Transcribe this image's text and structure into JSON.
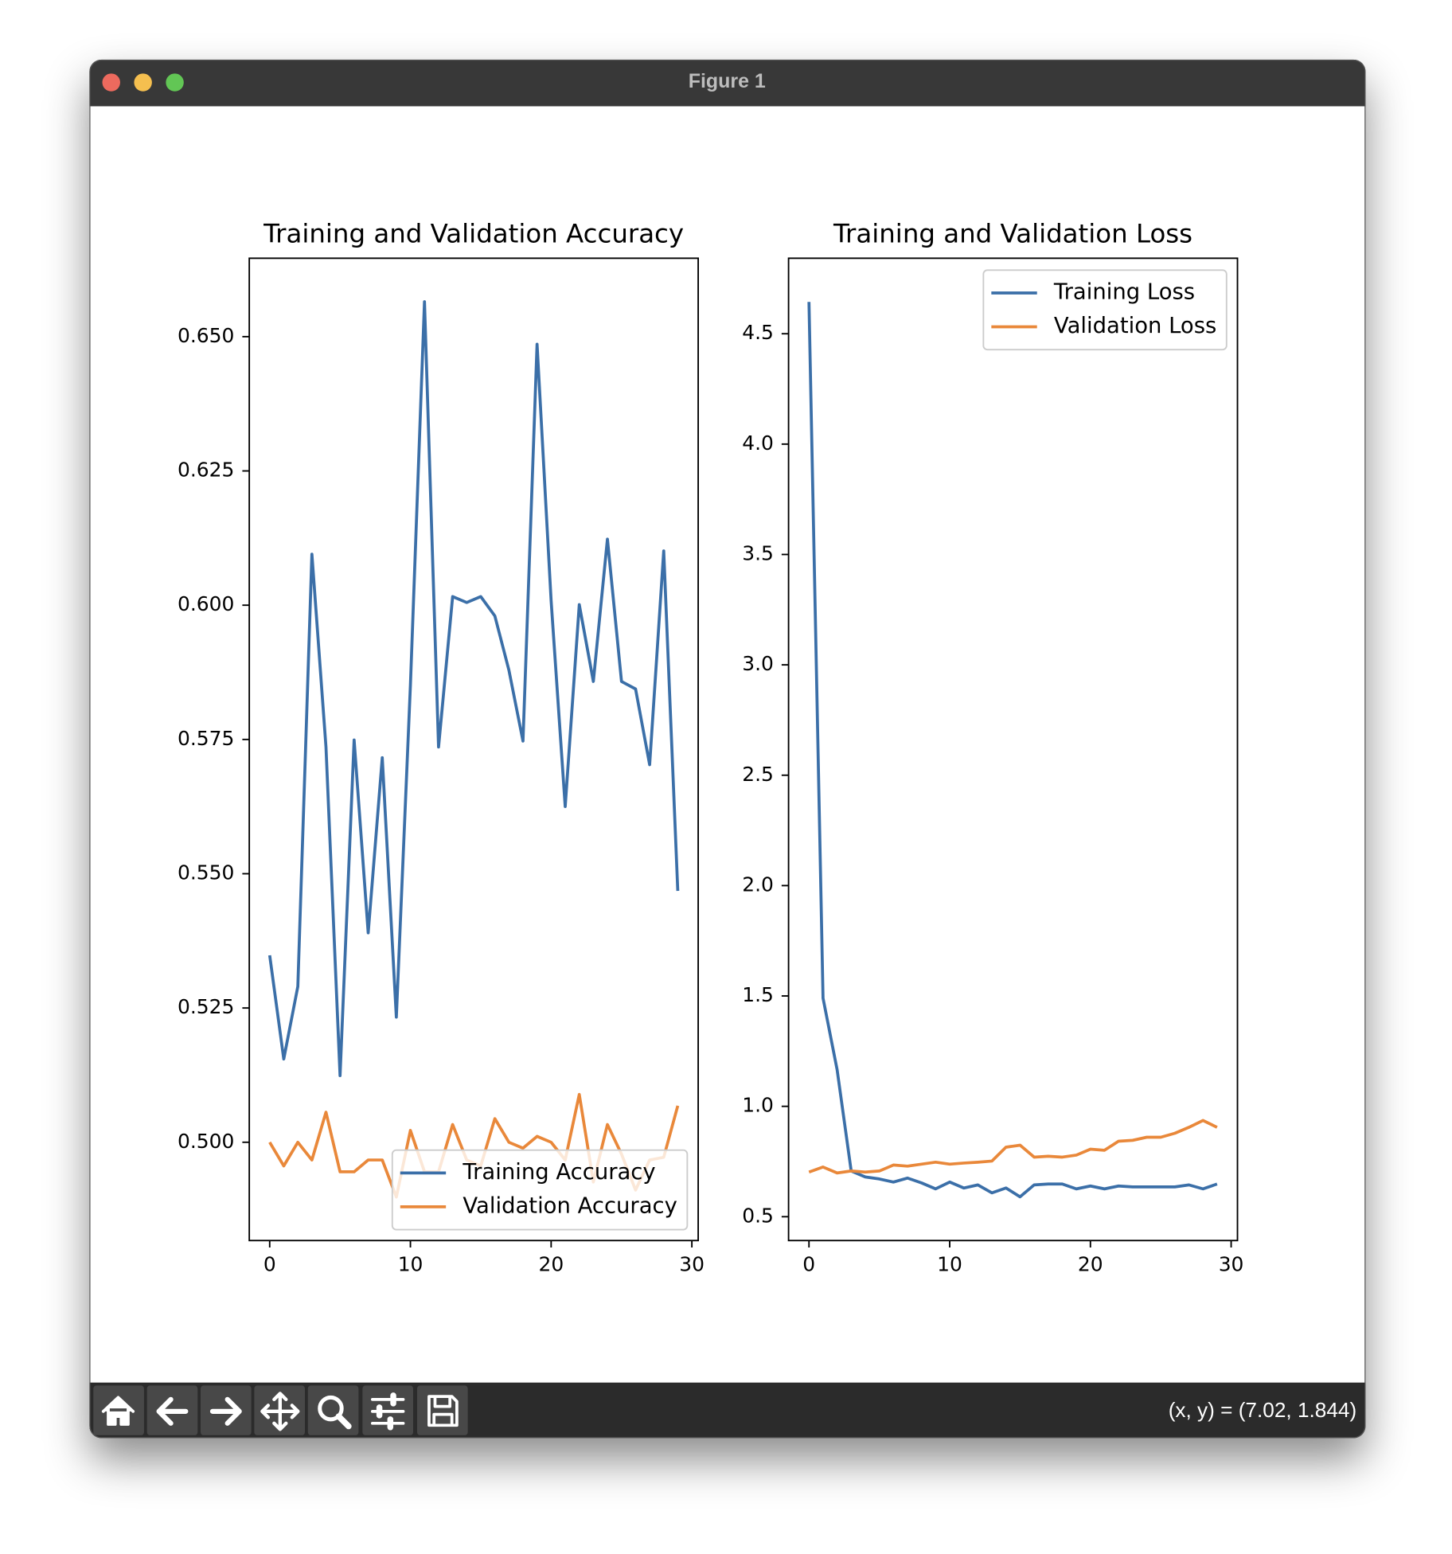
{
  "window": {
    "title": "Figure 1",
    "status": "(x, y) = (7.02, 1.844)"
  },
  "chart_data": [
    {
      "type": "line",
      "title": "Training and Validation Accuracy",
      "x": [
        0,
        1,
        2,
        3,
        4,
        5,
        6,
        7,
        8,
        9,
        10,
        11,
        12,
        13,
        14,
        15,
        16,
        17,
        18,
        19,
        20,
        21,
        22,
        23,
        24,
        25,
        26,
        27,
        28,
        29
      ],
      "series": [
        {
          "name": "Training Accuracy",
          "color": "#3b6fa8",
          "values": [
            0.5348,
            0.5155,
            0.529,
            0.6095,
            0.5736,
            0.5124,
            0.5749,
            0.539,
            0.5716,
            0.5233,
            0.5851,
            0.6565,
            0.5736,
            0.6016,
            0.6005,
            0.6016,
            0.598,
            0.5879,
            0.5747,
            0.6486,
            0.6008,
            0.5625,
            0.6001,
            0.5858,
            0.6123,
            0.5858,
            0.5844,
            0.5703,
            0.6101,
            0.5468
          ]
        },
        {
          "name": "Validation Accuracy",
          "color": "#e9883a",
          "values": [
            0.5,
            0.4956,
            0.5,
            0.4967,
            0.5056,
            0.4945,
            0.4945,
            0.4967,
            0.4967,
            0.4898,
            0.5022,
            0.4945,
            0.4945,
            0.5033,
            0.4967,
            0.4956,
            0.5044,
            0.5,
            0.4989,
            0.5011,
            0.5,
            0.4967,
            0.5089,
            0.4926,
            0.5033,
            0.4978,
            0.4911,
            0.4967,
            0.4972,
            0.5068
          ]
        }
      ],
      "xlim": [
        -1.45,
        30.45
      ],
      "xticks": [
        0,
        10,
        20,
        30
      ],
      "ylim": [
        0.4817,
        0.6646
      ],
      "yticks": [
        {
          "value": 0.5,
          "label": "0.500"
        },
        {
          "value": 0.525,
          "label": "0.525"
        },
        {
          "value": 0.55,
          "label": "0.550"
        },
        {
          "value": 0.575,
          "label": "0.575"
        },
        {
          "value": 0.6,
          "label": "0.600"
        },
        {
          "value": 0.625,
          "label": "0.625"
        },
        {
          "value": 0.65,
          "label": "0.650"
        }
      ],
      "grid": false,
      "legend": "lower right"
    },
    {
      "type": "line",
      "title": "Training and Validation Loss",
      "x": [
        0,
        1,
        2,
        3,
        4,
        5,
        6,
        7,
        8,
        9,
        10,
        11,
        12,
        13,
        14,
        15,
        16,
        17,
        18,
        19,
        20,
        21,
        22,
        23,
        24,
        25,
        26,
        27,
        28,
        29
      ],
      "series": [
        {
          "name": "Training Loss",
          "color": "#3b6fa8",
          "values": [
            4.644,
            1.49,
            1.166,
            0.707,
            0.68,
            0.671,
            0.657,
            0.675,
            0.653,
            0.626,
            0.657,
            0.63,
            0.644,
            0.608,
            0.63,
            0.59,
            0.644,
            0.648,
            0.648,
            0.626,
            0.639,
            0.626,
            0.639,
            0.635,
            0.635,
            0.635,
            0.635,
            0.644,
            0.626,
            0.648
          ]
        },
        {
          "name": "Validation Loss",
          "color": "#e9883a",
          "values": [
            0.702,
            0.725,
            0.698,
            0.707,
            0.702,
            0.707,
            0.734,
            0.729,
            0.738,
            0.747,
            0.738,
            0.743,
            0.747,
            0.752,
            0.815,
            0.824,
            0.77,
            0.774,
            0.77,
            0.779,
            0.806,
            0.801,
            0.842,
            0.846,
            0.86,
            0.86,
            0.878,
            0.905,
            0.936,
            0.905
          ]
        }
      ],
      "xlim": [
        -1.45,
        30.45
      ],
      "xticks": [
        0,
        10,
        20,
        30
      ],
      "ylim": [
        0.392,
        4.842
      ],
      "yticks": [
        0.5,
        {
          "value": 1,
          "label": "1.0"
        },
        1.5,
        {
          "value": 2,
          "label": "2.0"
        },
        2.5,
        {
          "value": 3,
          "label": "3.0"
        },
        3.5,
        {
          "value": 4,
          "label": "4.0"
        },
        4.5
      ],
      "grid": false,
      "legend": "upper right"
    }
  ]
}
